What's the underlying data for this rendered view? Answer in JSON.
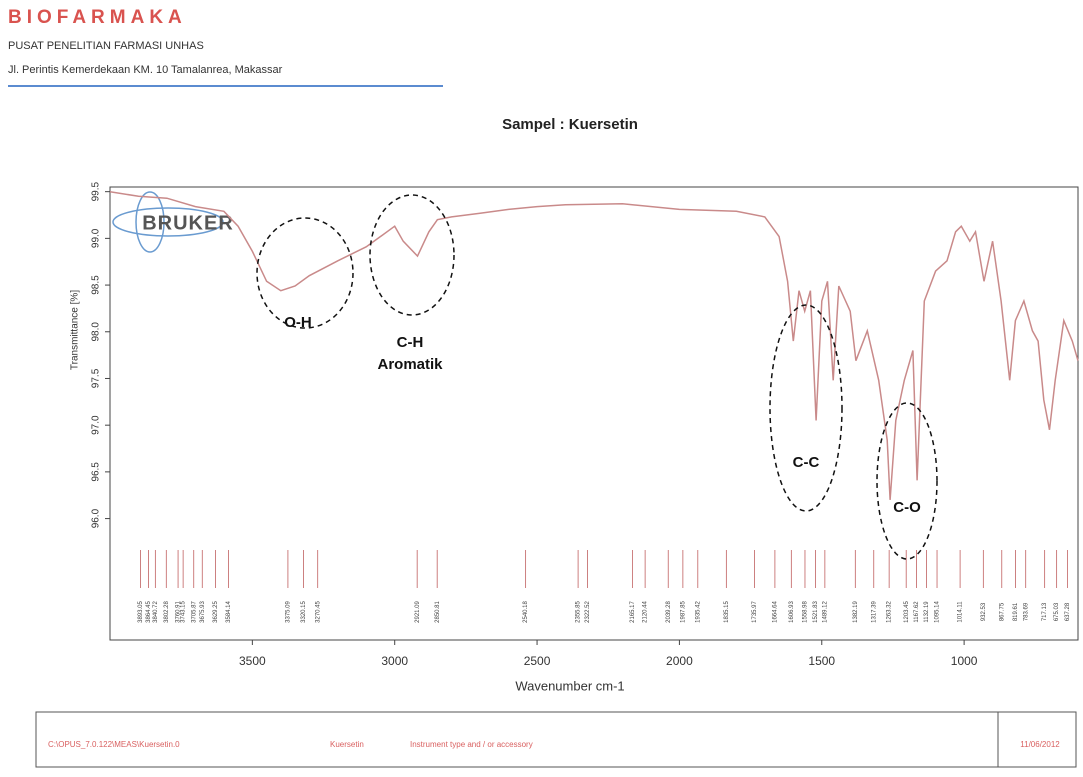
{
  "header": {
    "brand": "BIOFARMAKA",
    "org": "PUSAT PENELITIAN FARMASI UNHAS",
    "address": "Jl. Perintis Kemerdekaan KM. 10 Tamalanrea, Makassar"
  },
  "chart_data": {
    "type": "line",
    "title": "Sampel : Kuersetin",
    "logo": "BRUKER",
    "x_label": "Wavenumber cm-1",
    "y_label": "Transmittance [%]",
    "xlim": [
      4000,
      600
    ],
    "xticks": [
      3500,
      3000,
      2500,
      2000,
      1500,
      1000
    ],
    "ylim": [
      94.7,
      99.55
    ],
    "yticks": [
      99.5,
      {
        "value": 99,
        "label": "99.0"
      },
      98.5,
      {
        "value": 98,
        "label": "98.0"
      },
      97.5,
      {
        "value": 97,
        "label": "97.0"
      },
      96.5,
      {
        "value": 96,
        "label": "96.0"
      }
    ],
    "series": [
      {
        "name": "Kuersetin",
        "color": "#c98a8a",
        "x": [
          4000,
          3900,
          3800,
          3700,
          3600,
          3550,
          3500,
          3450,
          3400,
          3350,
          3300,
          3200,
          3100,
          3050,
          3000,
          2970,
          2920,
          2880,
          2850,
          2800,
          2700,
          2600,
          2500,
          2400,
          2200,
          2000,
          1800,
          1700,
          1650,
          1620,
          1600,
          1580,
          1560,
          1540,
          1520,
          1500,
          1480,
          1460,
          1440,
          1400,
          1380,
          1340,
          1300,
          1270,
          1260,
          1240,
          1210,
          1180,
          1165,
          1140,
          1100,
          1060,
          1030,
          1010,
          980,
          960,
          930,
          900,
          870,
          840,
          820,
          790,
          760,
          740,
          720,
          700,
          680,
          650,
          620,
          600
        ],
        "values": [
          99.5,
          99.45,
          99.43,
          99.34,
          99.29,
          99.13,
          98.86,
          98.54,
          98.44,
          98.49,
          98.6,
          98.76,
          98.91,
          99.02,
          99.13,
          98.97,
          98.81,
          99.07,
          99.2,
          99.23,
          99.27,
          99.31,
          99.34,
          99.36,
          99.37,
          99.31,
          99.29,
          99.23,
          99.02,
          98.54,
          97.9,
          98.44,
          98.22,
          98.44,
          97.05,
          98.33,
          98.54,
          97.48,
          98.49,
          98.22,
          97.69,
          98.01,
          97.48,
          96.84,
          96.2,
          97.05,
          97.48,
          97.8,
          96.41,
          98.33,
          98.65,
          98.76,
          99.07,
          99.13,
          98.97,
          99.07,
          98.54,
          98.97,
          98.33,
          97.48,
          98.12,
          98.33,
          98.01,
          97.9,
          97.27,
          96.95,
          97.48,
          98.12,
          97.9,
          97.69
        ]
      }
    ],
    "peaks": [
      3893.05,
      3864.45,
      3840.72,
      3802.28,
      3760.91,
      3743.15,
      3705.87,
      3675.93,
      3629.25,
      3584.14,
      3375.09,
      3320.15,
      3270.45,
      2921.09,
      2850.81,
      2540.18,
      2355.85,
      2322.52,
      2165.17,
      2120.44,
      2039.28,
      1987.85,
      1935.42,
      1835.15,
      1735.97,
      1664.64,
      1606.93,
      1558.98,
      1521.83,
      1489.12,
      1382.19,
      1317.39,
      1263.32,
      1203.45,
      1167.62,
      1132.19,
      1095.14,
      1014.11,
      932.53,
      867.75,
      819.61,
      783.69,
      717.13,
      675.03,
      637.28
    ],
    "annotations": [
      "O-H",
      "C-H",
      "Aromatik",
      "C-C",
      "C-O"
    ]
  },
  "footer": {
    "path": "C:\\OPUS_7.0.122\\MEAS\\Kuersetin.0",
    "sample": "Kuersetin",
    "instrument": "Instrument type and / or accessory",
    "date": "11/06/2012"
  }
}
